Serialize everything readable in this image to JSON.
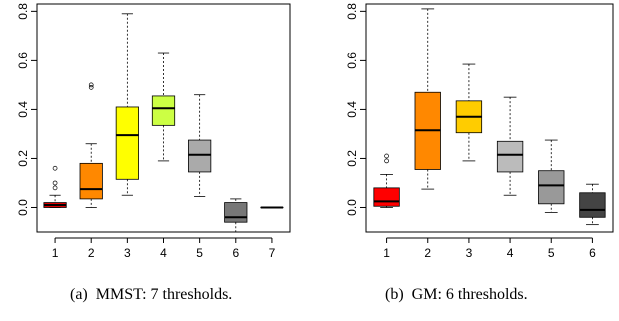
{
  "chart_data": [
    {
      "type": "box",
      "caption": "(a)  MMST: 7 thresholds.",
      "categories": [
        "1",
        "2",
        "3",
        "4",
        "5",
        "6",
        "7"
      ],
      "ylim": [
        -0.1,
        0.83
      ],
      "yticks": [
        "0.0",
        "0.2",
        "0.4",
        "0.6",
        "0.8"
      ],
      "ytick_values": [
        0.0,
        0.2,
        0.4,
        0.6,
        0.8
      ],
      "series": [
        {
          "color": "#dd0000",
          "min": 0.0,
          "q1": 0.0,
          "median": 0.01,
          "q3": 0.02,
          "max": 0.05,
          "outliers": [
            0.08,
            0.1,
            0.16
          ]
        },
        {
          "color": "#ff8800",
          "min": 0.0,
          "q1": 0.035,
          "median": 0.075,
          "q3": 0.18,
          "max": 0.26,
          "outliers": [
            0.49,
            0.5
          ]
        },
        {
          "color": "#ffff00",
          "min": 0.05,
          "q1": 0.115,
          "median": 0.295,
          "q3": 0.41,
          "max": 0.79,
          "outliers": []
        },
        {
          "color": "#ccff44",
          "min": 0.19,
          "q1": 0.335,
          "median": 0.405,
          "q3": 0.455,
          "max": 0.63,
          "outliers": []
        },
        {
          "color": "#aaaaaa",
          "min": 0.045,
          "q1": 0.145,
          "median": 0.215,
          "q3": 0.275,
          "max": 0.46,
          "outliers": []
        },
        {
          "color": "#777777",
          "min": -0.1,
          "q1": -0.06,
          "median": -0.04,
          "q3": 0.02,
          "max": 0.035,
          "outliers": []
        },
        {
          "color": "#444444",
          "min": 0.0,
          "q1": 0.0,
          "median": 0.0,
          "q3": 0.0,
          "max": 0.0,
          "outliers": []
        }
      ]
    },
    {
      "type": "box",
      "caption": "(b)  GM: 6 thresholds.",
      "categories": [
        "1",
        "2",
        "3",
        "4",
        "5",
        "6"
      ],
      "ylim": [
        -0.1,
        0.83
      ],
      "yticks": [
        "0.0",
        "0.2",
        "0.4",
        "0.6",
        "0.8"
      ],
      "ytick_values": [
        0.0,
        0.2,
        0.4,
        0.6,
        0.8
      ],
      "series": [
        {
          "color": "#ff0000",
          "min": 0.0,
          "q1": 0.005,
          "median": 0.025,
          "q3": 0.08,
          "max": 0.135,
          "outliers": [
            0.19,
            0.21
          ]
        },
        {
          "color": "#ff8800",
          "min": 0.075,
          "q1": 0.155,
          "median": 0.315,
          "q3": 0.47,
          "max": 0.81,
          "outliers": []
        },
        {
          "color": "#ffcc00",
          "min": 0.19,
          "q1": 0.305,
          "median": 0.37,
          "q3": 0.435,
          "max": 0.585,
          "outliers": []
        },
        {
          "color": "#bbbbbb",
          "min": 0.05,
          "q1": 0.145,
          "median": 0.215,
          "q3": 0.27,
          "max": 0.45,
          "outliers": []
        },
        {
          "color": "#999999",
          "min": -0.02,
          "q1": 0.015,
          "median": 0.09,
          "q3": 0.15,
          "max": 0.275,
          "outliers": []
        },
        {
          "color": "#444444",
          "min": -0.07,
          "q1": -0.04,
          "median": -0.01,
          "q3": 0.06,
          "max": 0.095,
          "outliers": []
        }
      ]
    }
  ]
}
